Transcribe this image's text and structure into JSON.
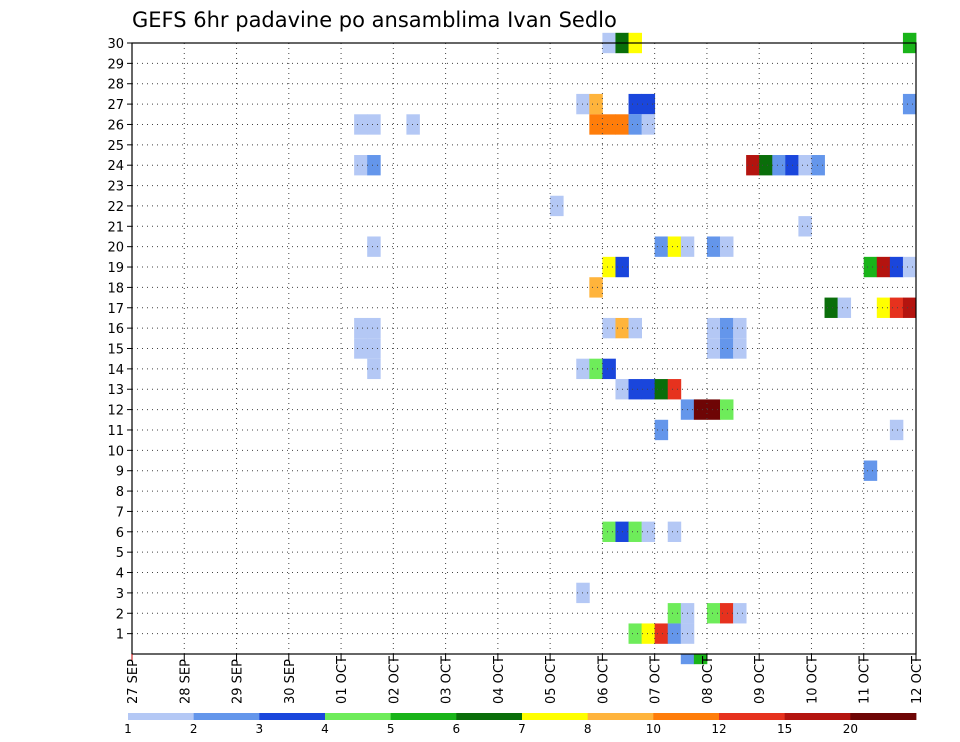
{
  "chart_data": {
    "type": "heatmap",
    "title": "GEFS 6hr padavine po ansamblima Ivan Sedlo",
    "x_ticks": [
      "27 SEP",
      "28 SEP",
      "29 SEP",
      "30 SEP",
      "01 OCT",
      "02 OCT",
      "03 OCT",
      "04 OCT",
      "05 OCT",
      "06 OCT",
      "07 OCT",
      "08 OCT",
      "09 OCT",
      "10 OCT",
      "11 OCT",
      "12 OCT"
    ],
    "x_step": "6h",
    "y_ticks": [
      "1",
      "2",
      "3",
      "4",
      "5",
      "6",
      "7",
      "8",
      "9",
      "10",
      "11",
      "12",
      "13",
      "14",
      "15",
      "16",
      "17",
      "18",
      "19",
      "20",
      "21",
      "22",
      "23",
      "24",
      "25",
      "26",
      "27",
      "28",
      "29",
      "30"
    ],
    "ylim": [
      0,
      30
    ],
    "grid": true,
    "colorbar": {
      "labels": [
        "1",
        "2",
        "3",
        "4",
        "5",
        "6",
        "7",
        "8",
        "10",
        "12",
        "15",
        "20"
      ],
      "colors": [
        "#b4c8f5",
        "#6496eb",
        "#1a46dc",
        "#6eec5a",
        "#19b419",
        "#0a6e0a",
        "#ffff00",
        "#ffb43c",
        "#ff7d0a",
        "#e6321e",
        "#b4140f",
        "#6e0505"
      ]
    },
    "cells": [
      {
        "t": "06 OCT 00",
        "m": 30,
        "v": 1
      },
      {
        "t": "06 OCT 06",
        "m": 30,
        "v": 6
      },
      {
        "t": "06 OCT 12",
        "m": 30,
        "v": 7
      },
      {
        "t": "11 OCT 18",
        "m": 30,
        "v": 5
      },
      {
        "t": "05 OCT 12",
        "m": 27,
        "v": 1
      },
      {
        "t": "05 OCT 18",
        "m": 27,
        "v": 8
      },
      {
        "t": "06 OCT 12",
        "m": 27,
        "v": 3
      },
      {
        "t": "06 OCT 18",
        "m": 27,
        "v": 3
      },
      {
        "t": "11 OCT 18",
        "m": 27,
        "v": 2
      },
      {
        "t": "01 OCT 06",
        "m": 26,
        "v": 1
      },
      {
        "t": "01 OCT 12",
        "m": 26,
        "v": 1
      },
      {
        "t": "02 OCT 06",
        "m": 26,
        "v": 1
      },
      {
        "t": "05 OCT 18",
        "m": 26,
        "v": 10
      },
      {
        "t": "06 OCT 00",
        "m": 26,
        "v": 10
      },
      {
        "t": "06 OCT 06",
        "m": 26,
        "v": 10
      },
      {
        "t": "06 OCT 12",
        "m": 26,
        "v": 2
      },
      {
        "t": "06 OCT 18",
        "m": 26,
        "v": 1
      },
      {
        "t": "01 OCT 06",
        "m": 24,
        "v": 1
      },
      {
        "t": "01 OCT 12",
        "m": 24,
        "v": 2
      },
      {
        "t": "08 OCT 18",
        "m": 24,
        "v": 15
      },
      {
        "t": "09 OCT 00",
        "m": 24,
        "v": 6
      },
      {
        "t": "09 OCT 06",
        "m": 24,
        "v": 2
      },
      {
        "t": "09 OCT 12",
        "m": 24,
        "v": 3
      },
      {
        "t": "09 OCT 18",
        "m": 24,
        "v": 1
      },
      {
        "t": "10 OCT 00",
        "m": 24,
        "v": 2
      },
      {
        "t": "05 OCT 00",
        "m": 22,
        "v": 1
      },
      {
        "t": "09 OCT 18",
        "m": 21,
        "v": 1
      },
      {
        "t": "01 OCT 12",
        "m": 20,
        "v": 1
      },
      {
        "t": "07 OCT 00",
        "m": 20,
        "v": 2
      },
      {
        "t": "07 OCT 06",
        "m": 20,
        "v": 7
      },
      {
        "t": "07 OCT 12",
        "m": 20,
        "v": 1
      },
      {
        "t": "08 OCT 00",
        "m": 20,
        "v": 2
      },
      {
        "t": "08 OCT 06",
        "m": 20,
        "v": 1
      },
      {
        "t": "06 OCT 00",
        "m": 19,
        "v": 7
      },
      {
        "t": "06 OCT 06",
        "m": 19,
        "v": 3
      },
      {
        "t": "11 OCT 00",
        "m": 19,
        "v": 5
      },
      {
        "t": "11 OCT 06",
        "m": 19,
        "v": 15
      },
      {
        "t": "11 OCT 12",
        "m": 19,
        "v": 3
      },
      {
        "t": "11 OCT 18",
        "m": 19,
        "v": 1
      },
      {
        "t": "05 OCT 18",
        "m": 18,
        "v": 8
      },
      {
        "t": "10 OCT 06",
        "m": 17,
        "v": 6
      },
      {
        "t": "10 OCT 12",
        "m": 17,
        "v": 1
      },
      {
        "t": "11 OCT 06",
        "m": 17,
        "v": 7
      },
      {
        "t": "11 OCT 12",
        "m": 17,
        "v": 12
      },
      {
        "t": "11 OCT 18",
        "m": 17,
        "v": 15
      },
      {
        "t": "01 OCT 06",
        "m": 16,
        "v": 1
      },
      {
        "t": "01 OCT 12",
        "m": 16,
        "v": 1
      },
      {
        "t": "06 OCT 00",
        "m": 16,
        "v": 1
      },
      {
        "t": "06 OCT 06",
        "m": 16,
        "v": 8
      },
      {
        "t": "06 OCT 12",
        "m": 16,
        "v": 1
      },
      {
        "t": "08 OCT 00",
        "m": 16,
        "v": 1
      },
      {
        "t": "08 OCT 06",
        "m": 16,
        "v": 2
      },
      {
        "t": "08 OCT 12",
        "m": 16,
        "v": 1
      },
      {
        "t": "01 OCT 06",
        "m": 15,
        "v": 1
      },
      {
        "t": "01 OCT 12",
        "m": 15,
        "v": 1
      },
      {
        "t": "08 OCT 00",
        "m": 15,
        "v": 1
      },
      {
        "t": "08 OCT 06",
        "m": 15,
        "v": 2
      },
      {
        "t": "08 OCT 12",
        "m": 15,
        "v": 1
      },
      {
        "t": "01 OCT 12",
        "m": 14,
        "v": 1
      },
      {
        "t": "05 OCT 12",
        "m": 14,
        "v": 1
      },
      {
        "t": "05 OCT 18",
        "m": 14,
        "v": 4
      },
      {
        "t": "06 OCT 00",
        "m": 14,
        "v": 3
      },
      {
        "t": "06 OCT 06",
        "m": 13,
        "v": 1
      },
      {
        "t": "06 OCT 12",
        "m": 13,
        "v": 3
      },
      {
        "t": "06 OCT 18",
        "m": 13,
        "v": 3
      },
      {
        "t": "07 OCT 00",
        "m": 13,
        "v": 6
      },
      {
        "t": "07 OCT 06",
        "m": 13,
        "v": 12
      },
      {
        "t": "07 OCT 12",
        "m": 12,
        "v": 2
      },
      {
        "t": "07 OCT 18",
        "m": 12,
        "v": 20
      },
      {
        "t": "08 OCT 00",
        "m": 12,
        "v": 20
      },
      {
        "t": "08 OCT 06",
        "m": 12,
        "v": 4
      },
      {
        "t": "07 OCT 00",
        "m": 11,
        "v": 2
      },
      {
        "t": "11 OCT 12",
        "m": 11,
        "v": 1
      },
      {
        "t": "11 OCT 00",
        "m": 9,
        "v": 2
      },
      {
        "t": "06 OCT 00",
        "m": 6,
        "v": 4
      },
      {
        "t": "06 OCT 06",
        "m": 6,
        "v": 3
      },
      {
        "t": "06 OCT 12",
        "m": 6,
        "v": 4
      },
      {
        "t": "06 OCT 18",
        "m": 6,
        "v": 1
      },
      {
        "t": "07 OCT 06",
        "m": 6,
        "v": 1
      },
      {
        "t": "05 OCT 12",
        "m": 3,
        "v": 1
      },
      {
        "t": "07 OCT 06",
        "m": 2,
        "v": 4
      },
      {
        "t": "07 OCT 12",
        "m": 2,
        "v": 1
      },
      {
        "t": "08 OCT 00",
        "m": 2,
        "v": 4
      },
      {
        "t": "08 OCT 06",
        "m": 2,
        "v": 12
      },
      {
        "t": "08 OCT 12",
        "m": 2,
        "v": 1
      },
      {
        "t": "06 OCT 12",
        "m": 1,
        "v": 4
      },
      {
        "t": "06 OCT 18",
        "m": 1,
        "v": 7
      },
      {
        "t": "07 OCT 00",
        "m": 1,
        "v": 12
      },
      {
        "t": "07 OCT 06",
        "m": 1,
        "v": 2
      },
      {
        "t": "07 OCT 12",
        "m": 1,
        "v": 1
      },
      {
        "t": "07 OCT 12",
        "m": 0,
        "v": 2
      },
      {
        "t": "07 OCT 18",
        "m": 0,
        "v": 5
      }
    ]
  }
}
